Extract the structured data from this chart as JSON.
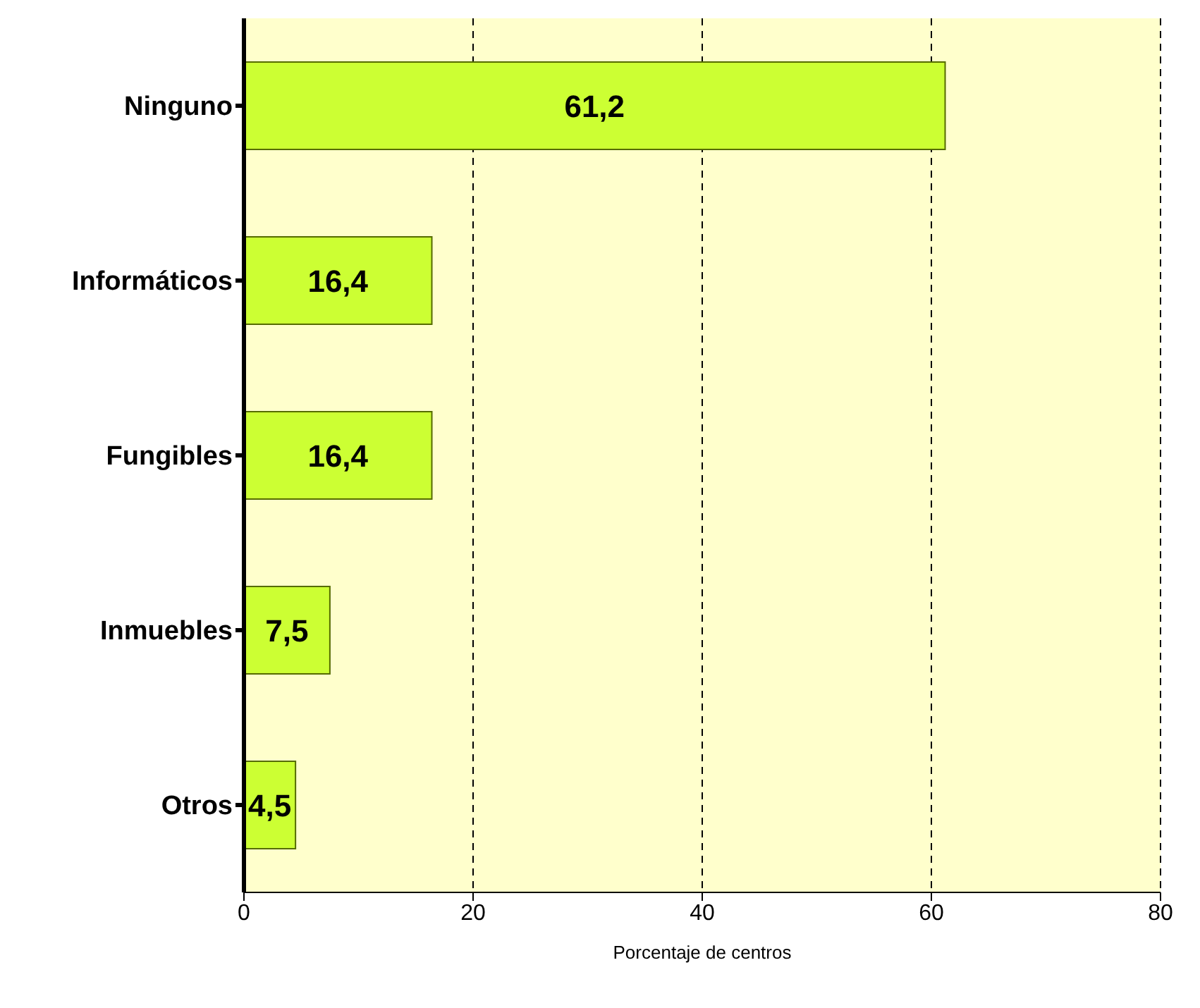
{
  "chart_data": {
    "type": "bar",
    "orientation": "horizontal",
    "categories": [
      "Ninguno",
      "Informáticos",
      "Fungibles",
      "Inmuebles",
      "Otros"
    ],
    "values": [
      61.2,
      16.4,
      16.4,
      7.5,
      4.5
    ],
    "value_labels": [
      "61,2",
      "16,4",
      "16,4",
      "7,5",
      "4,5"
    ],
    "color": "#ccff33",
    "xlim": [
      0,
      80
    ],
    "xticks": [
      0,
      20,
      40,
      60,
      80
    ],
    "grid": "x",
    "xlabel": "Porcentaje de centros"
  }
}
